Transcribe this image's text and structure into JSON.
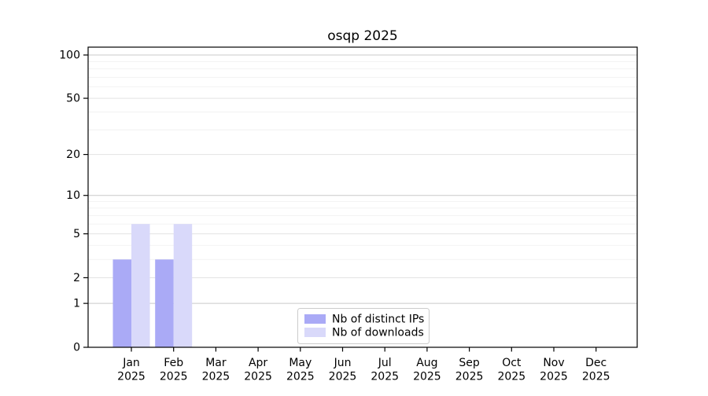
{
  "figure": {
    "background": "#ffffff"
  },
  "chart_data": {
    "type": "bar",
    "title": "osqp 2025",
    "categories": [
      "Jan",
      "Feb",
      "Mar",
      "Apr",
      "May",
      "Jun",
      "Jul",
      "Aug",
      "Sep",
      "Oct",
      "Nov",
      "Dec"
    ],
    "year_labels": [
      "2025",
      "2025",
      "2025",
      "2025",
      "2025",
      "2025",
      "2025",
      "2025",
      "2025",
      "2025",
      "2025",
      "2025"
    ],
    "series": [
      {
        "name": "Nb of distinct IPs",
        "color": "#aaaaf6",
        "values": [
          3,
          3,
          0,
          0,
          0,
          0,
          0,
          0,
          0,
          0,
          0,
          0
        ]
      },
      {
        "name": "Nb of downloads",
        "color": "#d9d9fa",
        "values": [
          6,
          6,
          0,
          0,
          0,
          0,
          0,
          0,
          0,
          0,
          0,
          0
        ]
      }
    ],
    "yscale": "log1p",
    "ylim": [
      0,
      110
    ],
    "yticks": [
      0,
      1,
      2,
      5,
      10,
      20,
      50,
      100
    ],
    "ytick_labels": [
      "0",
      "1",
      "2",
      "5",
      "10",
      "20",
      "50",
      "100"
    ],
    "minor_gridlines": [
      3,
      4,
      6,
      7,
      8,
      9,
      30,
      40,
      60,
      70,
      80,
      90
    ],
    "grid": true,
    "legend": {
      "position": "bottom-center",
      "entries": [
        "Nb of distinct IPs",
        "Nb of downloads"
      ]
    },
    "colors": {
      "axis": "#000000",
      "major_grid": "#c9c9c9",
      "mid_grid": "#e3e3e3",
      "minor_grid": "#efefef",
      "legend_border": "#cccccc"
    }
  }
}
